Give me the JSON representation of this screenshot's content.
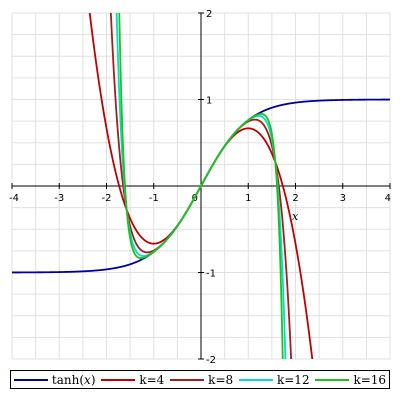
{
  "chart_data": {
    "type": "line",
    "xlabel": "x",
    "ylabel": "",
    "xlim": [
      -4,
      4
    ],
    "ylim": [
      -2,
      2
    ],
    "grid": true,
    "legend_position": "bottom",
    "x_ticks": [
      "-4",
      "-3",
      "-2",
      "-1",
      "0",
      "1",
      "2",
      "3",
      "4"
    ],
    "y_ticks": [
      "-2",
      "-1",
      "0",
      "1",
      "2"
    ],
    "series": [
      {
        "name": "tanh(x)",
        "name_base": "tanh(",
        "name_var": "x",
        "name_end": ")",
        "color": "#0000a0",
        "kind": "tanh"
      },
      {
        "name": "k=4",
        "color": "#c00000",
        "kind": "taylor",
        "k": 4
      },
      {
        "name": "k=8",
        "color": "#a02020",
        "kind": "taylor",
        "k": 8
      },
      {
        "name": "k=12",
        "color": "#00e0c0",
        "kind": "taylor",
        "k": 12
      },
      {
        "name": "k=16",
        "color": "#20c020",
        "kind": "taylor",
        "k": 16
      }
    ]
  }
}
